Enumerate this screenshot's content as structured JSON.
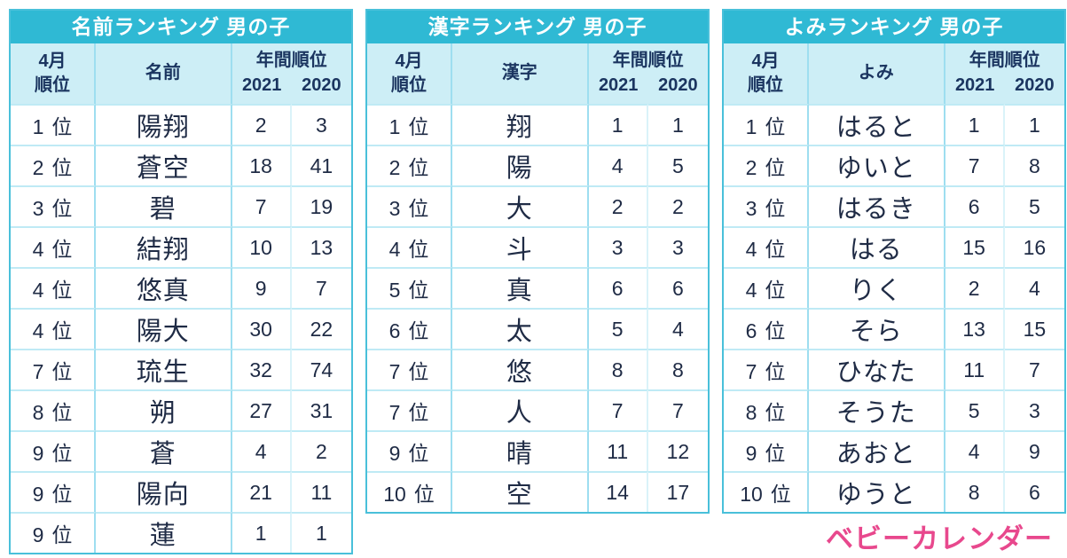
{
  "page": {
    "background": "#ffffff",
    "accent_color": "#2fb9d4",
    "header_bg": "#cdeef6",
    "border_color": "#49c0da",
    "text_color": "#1f2b45",
    "logo": {
      "text": "ベビーカレンダー",
      "color": "#e8488d"
    }
  },
  "chart_data": [
    {
      "type": "table",
      "title": "名前ランキング 男の子",
      "headers": {
        "rank_l1": "4月",
        "rank_l2": "順位",
        "item": "名前",
        "annual": "年間順位",
        "y2021": "2021",
        "y2020": "2020"
      },
      "rows": [
        {
          "rank": "1",
          "unit": "位",
          "item": "陽翔",
          "v2021": "2",
          "v2020": "3"
        },
        {
          "rank": "2",
          "unit": "位",
          "item": "蒼空",
          "v2021": "18",
          "v2020": "41"
        },
        {
          "rank": "3",
          "unit": "位",
          "item": "碧",
          "v2021": "7",
          "v2020": "19"
        },
        {
          "rank": "4",
          "unit": "位",
          "item": "結翔",
          "v2021": "10",
          "v2020": "13"
        },
        {
          "rank": "4",
          "unit": "位",
          "item": "悠真",
          "v2021": "9",
          "v2020": "7"
        },
        {
          "rank": "4",
          "unit": "位",
          "item": "陽大",
          "v2021": "30",
          "v2020": "22"
        },
        {
          "rank": "7",
          "unit": "位",
          "item": "琉生",
          "v2021": "32",
          "v2020": "74"
        },
        {
          "rank": "8",
          "unit": "位",
          "item": "朔",
          "v2021": "27",
          "v2020": "31"
        },
        {
          "rank": "9",
          "unit": "位",
          "item": "蒼",
          "v2021": "4",
          "v2020": "2"
        },
        {
          "rank": "9",
          "unit": "位",
          "item": "陽向",
          "v2021": "21",
          "v2020": "11"
        },
        {
          "rank": "9",
          "unit": "位",
          "item": "蓮",
          "v2021": "1",
          "v2020": "1"
        }
      ]
    },
    {
      "type": "table",
      "title": "漢字ランキング 男の子",
      "headers": {
        "rank_l1": "4月",
        "rank_l2": "順位",
        "item": "漢字",
        "annual": "年間順位",
        "y2021": "2021",
        "y2020": "2020"
      },
      "rows": [
        {
          "rank": "1",
          "unit": "位",
          "item": "翔",
          "v2021": "1",
          "v2020": "1"
        },
        {
          "rank": "2",
          "unit": "位",
          "item": "陽",
          "v2021": "4",
          "v2020": "5"
        },
        {
          "rank": "3",
          "unit": "位",
          "item": "大",
          "v2021": "2",
          "v2020": "2"
        },
        {
          "rank": "4",
          "unit": "位",
          "item": "斗",
          "v2021": "3",
          "v2020": "3"
        },
        {
          "rank": "5",
          "unit": "位",
          "item": "真",
          "v2021": "6",
          "v2020": "6"
        },
        {
          "rank": "6",
          "unit": "位",
          "item": "太",
          "v2021": "5",
          "v2020": "4"
        },
        {
          "rank": "7",
          "unit": "位",
          "item": "悠",
          "v2021": "8",
          "v2020": "8"
        },
        {
          "rank": "7",
          "unit": "位",
          "item": "人",
          "v2021": "7",
          "v2020": "7"
        },
        {
          "rank": "9",
          "unit": "位",
          "item": "晴",
          "v2021": "11",
          "v2020": "12"
        },
        {
          "rank": "10",
          "unit": "位",
          "item": "空",
          "v2021": "14",
          "v2020": "17"
        }
      ]
    },
    {
      "type": "table",
      "title": "よみランキング 男の子",
      "headers": {
        "rank_l1": "4月",
        "rank_l2": "順位",
        "item": "よみ",
        "annual": "年間順位",
        "y2021": "2021",
        "y2020": "2020"
      },
      "rows": [
        {
          "rank": "1",
          "unit": "位",
          "item": "はると",
          "v2021": "1",
          "v2020": "1"
        },
        {
          "rank": "2",
          "unit": "位",
          "item": "ゆいと",
          "v2021": "7",
          "v2020": "8"
        },
        {
          "rank": "3",
          "unit": "位",
          "item": "はるき",
          "v2021": "6",
          "v2020": "5"
        },
        {
          "rank": "4",
          "unit": "位",
          "item": "はる",
          "v2021": "15",
          "v2020": "16"
        },
        {
          "rank": "4",
          "unit": "位",
          "item": "りく",
          "v2021": "2",
          "v2020": "4"
        },
        {
          "rank": "6",
          "unit": "位",
          "item": "そら",
          "v2021": "13",
          "v2020": "15"
        },
        {
          "rank": "7",
          "unit": "位",
          "item": "ひなた",
          "v2021": "11",
          "v2020": "7"
        },
        {
          "rank": "8",
          "unit": "位",
          "item": "そうた",
          "v2021": "5",
          "v2020": "3"
        },
        {
          "rank": "9",
          "unit": "位",
          "item": "あおと",
          "v2021": "4",
          "v2020": "9"
        },
        {
          "rank": "10",
          "unit": "位",
          "item": "ゆうと",
          "v2021": "8",
          "v2020": "6"
        }
      ]
    }
  ]
}
